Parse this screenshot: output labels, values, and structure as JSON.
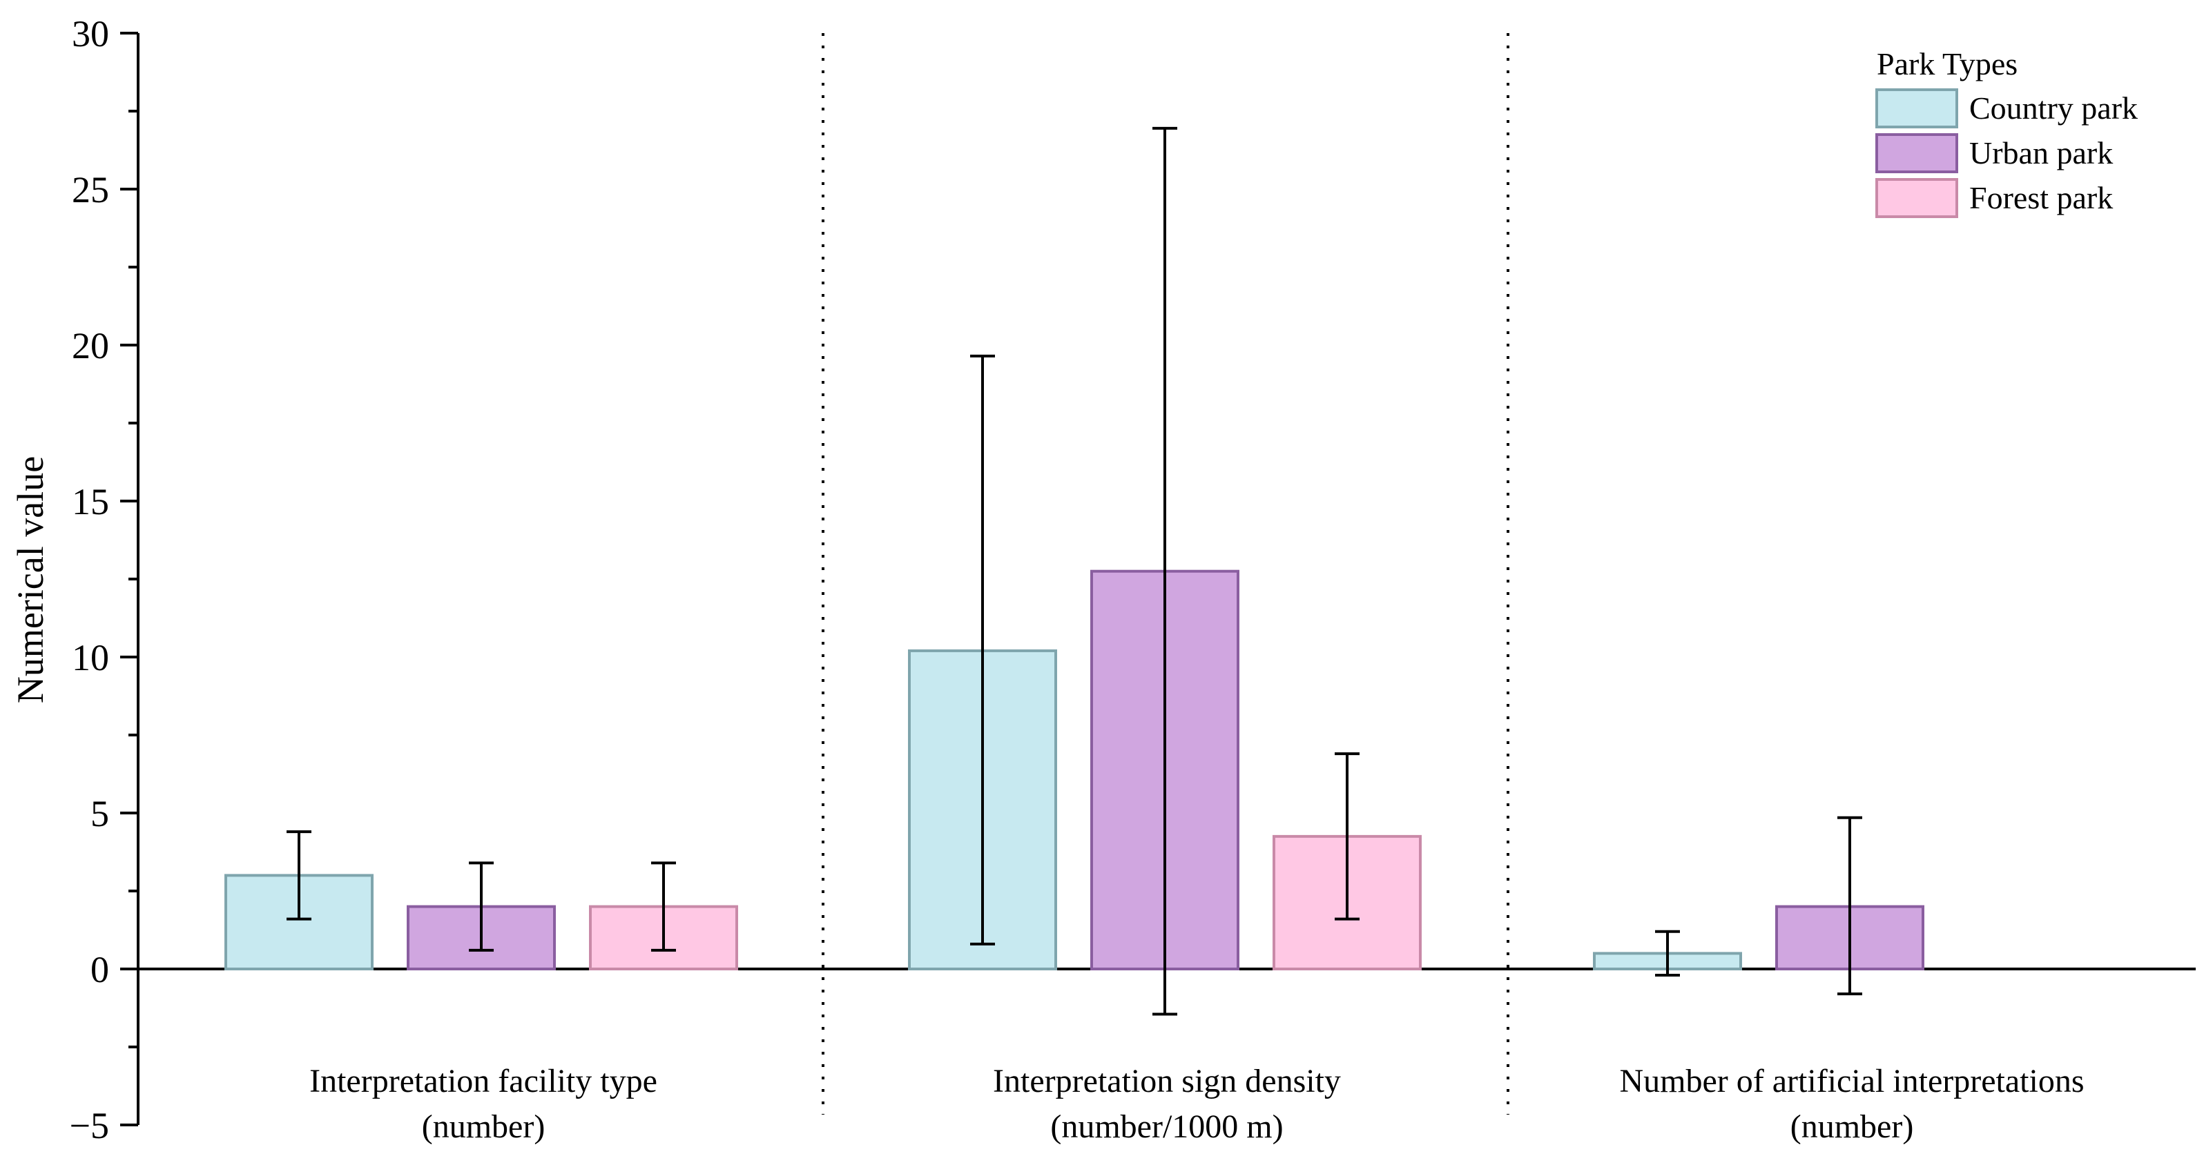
{
  "chart_data": {
    "type": "bar",
    "ylabel": "Numerical value",
    "ylim": [
      -5,
      30
    ],
    "yticks": [
      -5,
      0,
      5,
      10,
      15,
      20,
      25,
      30
    ],
    "yticks_labels": [
      "−5",
      "0",
      "5",
      "10",
      "15",
      "20",
      "25",
      "30"
    ],
    "grid": false,
    "groups": [
      {
        "line1": "Interpretation facility type",
        "line2": "(number)"
      },
      {
        "line1": "Interpretation sign density",
        "line2": "(number/1000 m)"
      },
      {
        "line1": "Number of artificial interpretations",
        "line2": "(number)"
      }
    ],
    "legend": {
      "title": "Park Types",
      "position": "top-right"
    },
    "series": [
      {
        "name": "Country park",
        "color": "#c7e9f0",
        "edge": "#7fa5ad",
        "values": [
          3.0,
          10.2,
          0.5
        ],
        "err_low": [
          1.6,
          0.8,
          -0.2
        ],
        "err_high": [
          4.4,
          19.65,
          1.2
        ]
      },
      {
        "name": "Urban park",
        "color": "#d0a6e0",
        "edge": "#8a5ea0",
        "values": [
          2.0,
          12.75,
          2.0
        ],
        "err_low": [
          0.6,
          -1.45,
          -0.8
        ],
        "err_high": [
          3.4,
          26.95,
          4.85
        ]
      },
      {
        "name": "Forest park",
        "color": "#ffc8e4",
        "edge": "#c98aa8",
        "values": [
          2.0,
          4.25,
          null
        ],
        "err_low": [
          0.6,
          1.6,
          null
        ],
        "err_high": [
          3.4,
          6.9,
          null
        ]
      }
    ]
  }
}
